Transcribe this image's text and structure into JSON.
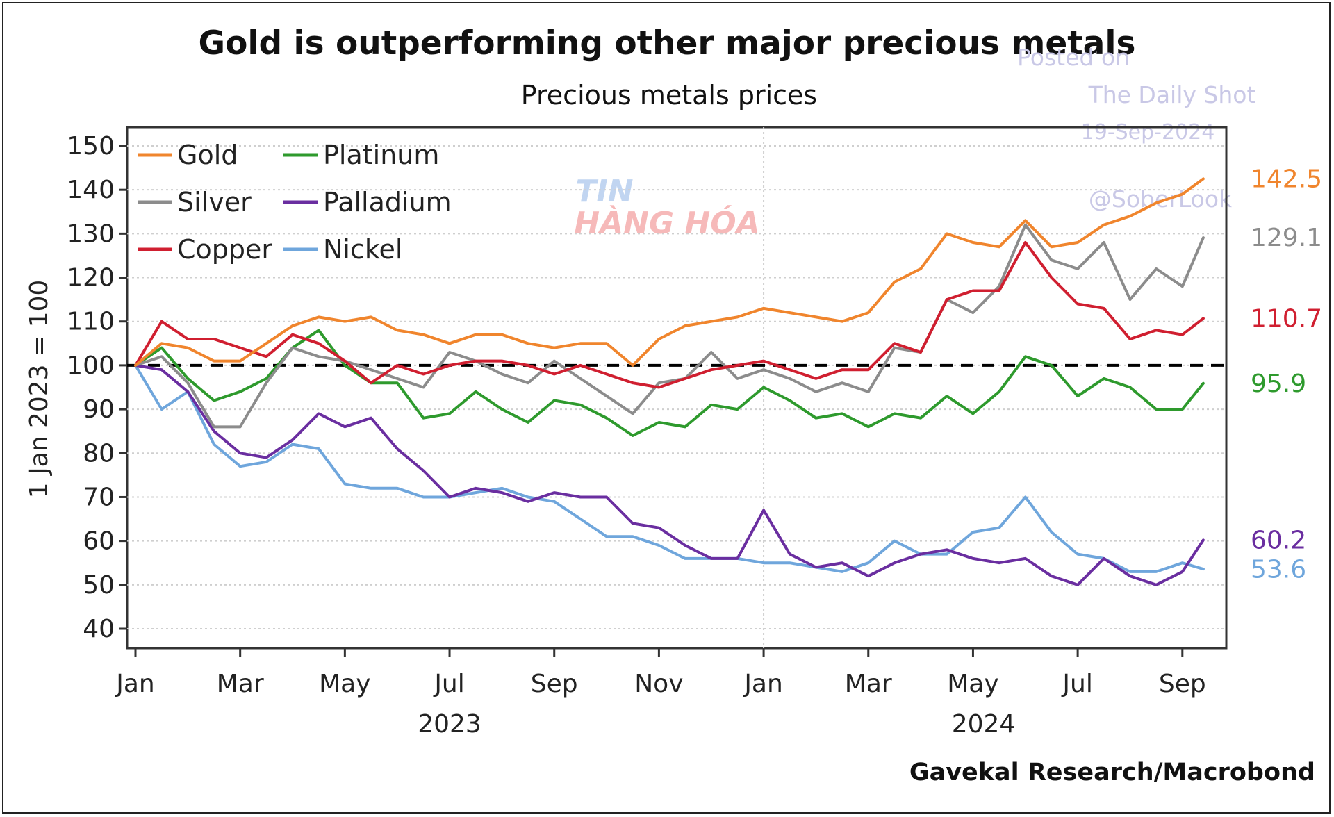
{
  "chart_data": {
    "type": "line",
    "title": "Gold is outperforming other major precious metals",
    "subtitle": "Precious metals prices",
    "ylabel": "1 Jan 2023 = 100",
    "ylim": [
      40,
      150
    ],
    "yticks": [
      40,
      50,
      60,
      70,
      80,
      90,
      100,
      110,
      120,
      130,
      140,
      150
    ],
    "xlim": [
      0,
      20.6
    ],
    "xticks": [
      {
        "label": "Jan",
        "month": 0
      },
      {
        "label": "Mar",
        "month": 2
      },
      {
        "label": "May",
        "month": 4
      },
      {
        "label": "Jul",
        "month": 6
      },
      {
        "label": "Sep",
        "month": 8
      },
      {
        "label": "Nov",
        "month": 10
      },
      {
        "label": "Jan",
        "month": 12
      },
      {
        "label": "Mar",
        "month": 14
      },
      {
        "label": "May",
        "month": 16
      },
      {
        "label": "Jul",
        "month": 18
      },
      {
        "label": "Sep",
        "month": 20
      }
    ],
    "year_labels": [
      {
        "label": "2023",
        "month": 6
      },
      {
        "label": "2024",
        "month": 16.2
      }
    ],
    "reference_line": 100,
    "x": [
      0,
      0.5,
      1,
      1.5,
      2,
      2.5,
      3,
      3.5,
      4,
      4.5,
      5,
      5.5,
      6,
      6.5,
      7,
      7.5,
      8,
      8.5,
      9,
      9.5,
      10,
      10.5,
      11,
      11.5,
      12,
      12.5,
      13,
      13.5,
      14,
      14.5,
      15,
      15.5,
      16,
      16.5,
      17,
      17.5,
      18,
      18.5,
      19,
      19.5,
      20,
      20.4
    ],
    "series": [
      {
        "name": "Gold",
        "color": "#f0852d",
        "end_label": "142.5",
        "values": [
          100,
          105,
          104,
          101,
          101,
          105,
          109,
          111,
          110,
          111,
          108,
          107,
          105,
          107,
          107,
          105,
          104,
          105,
          105,
          100,
          106,
          109,
          110,
          111,
          113,
          112,
          111,
          110,
          112,
          119,
          122,
          130,
          128,
          127,
          133,
          127,
          128,
          132,
          134,
          137,
          139,
          142.5
        ]
      },
      {
        "name": "Silver",
        "color": "#8c8c8c",
        "end_label": "129.1",
        "values": [
          100,
          102,
          96,
          86,
          86,
          96,
          104,
          102,
          101,
          99,
          97,
          95,
          103,
          101,
          98,
          96,
          101,
          97,
          93,
          89,
          96,
          97,
          103,
          97,
          99,
          97,
          94,
          96,
          94,
          104,
          103,
          115,
          112,
          118,
          132,
          124,
          122,
          128,
          115,
          122,
          118,
          129.1
        ]
      },
      {
        "name": "Copper",
        "color": "#d01f30",
        "end_label": "110.7",
        "values": [
          100,
          110,
          106,
          106,
          104,
          102,
          107,
          105,
          101,
          96,
          100,
          98,
          100,
          101,
          101,
          100,
          98,
          100,
          98,
          96,
          95,
          97,
          99,
          100,
          101,
          99,
          97,
          99,
          99,
          105,
          103,
          115,
          117,
          117,
          128,
          120,
          114,
          113,
          106,
          108,
          107,
          110.7
        ]
      },
      {
        "name": "Platinum",
        "color": "#2e9a2d",
        "end_label": "95.9",
        "values": [
          100,
          104,
          97,
          92,
          94,
          97,
          104,
          108,
          100,
          96,
          96,
          88,
          89,
          94,
          90,
          87,
          92,
          91,
          88,
          84,
          87,
          86,
          91,
          90,
          95,
          92,
          88,
          89,
          86,
          89,
          88,
          93,
          89,
          94,
          102,
          100,
          93,
          97,
          95,
          90,
          90,
          95.9
        ]
      },
      {
        "name": "Palladium",
        "color": "#6a2ea0",
        "end_label": "60.2",
        "values": [
          100,
          99,
          94,
          85,
          80,
          79,
          83,
          89,
          86,
          88,
          81,
          76,
          70,
          72,
          71,
          69,
          71,
          70,
          70,
          64,
          63,
          59,
          56,
          56,
          67,
          57,
          54,
          55,
          52,
          55,
          57,
          58,
          56,
          55,
          56,
          52,
          50,
          56,
          52,
          50,
          53,
          60.2
        ]
      },
      {
        "name": "Nickel",
        "color": "#6fa6dc",
        "end_label": "53.6",
        "values": [
          100,
          90,
          94,
          82,
          77,
          78,
          82,
          81,
          73,
          72,
          72,
          70,
          70,
          71,
          72,
          70,
          69,
          65,
          61,
          61,
          59,
          56,
          56,
          56,
          55,
          55,
          54,
          53,
          55,
          60,
          57,
          57,
          62,
          63,
          70,
          62,
          57,
          56,
          53,
          53,
          55,
          53.6
        ]
      }
    ],
    "legend": [
      {
        "label": "Gold",
        "color": "#f0852d"
      },
      {
        "label": "Platinum",
        "color": "#2e9a2d"
      },
      {
        "label": "Silver",
        "color": "#8c8c8c"
      },
      {
        "label": "Palladium",
        "color": "#6a2ea0"
      },
      {
        "label": "Copper",
        "color": "#d01f30"
      },
      {
        "label": "Nickel",
        "color": "#6fa6dc"
      }
    ],
    "legend_position": "top-left",
    "grid": true,
    "source": "Gavekal Research/Macrobond"
  },
  "watermark": {
    "posted_on": "Posted on",
    "publication": "The Daily Shot",
    "date": "19-Sep-2024",
    "handle": "@SoberLook",
    "logo_top": "TIN",
    "logo_bottom": "HÀNG HÓA"
  }
}
